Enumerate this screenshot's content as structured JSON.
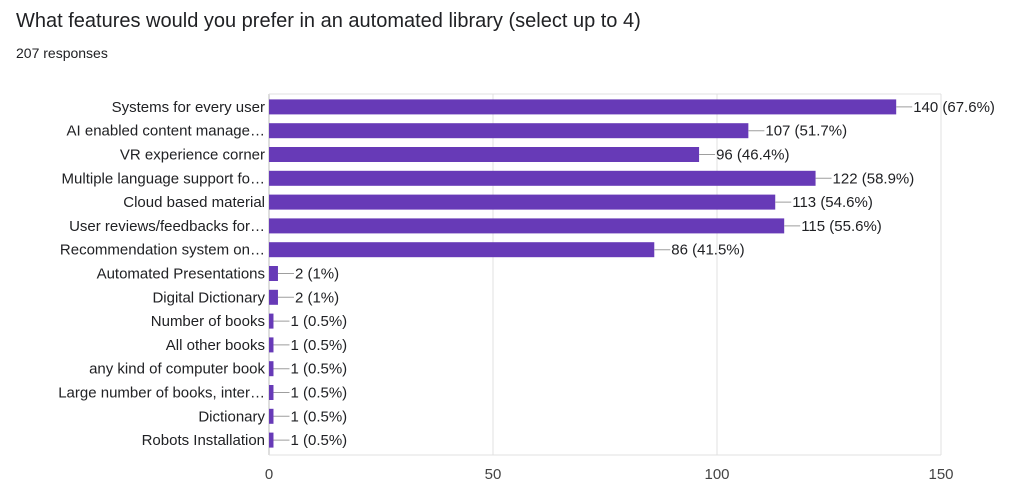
{
  "title": "What features would you prefer in an automated library (select up to 4)",
  "subtitle": "207 responses",
  "colors": {
    "bar": "#673ab7",
    "grid": "#e0e0e0",
    "axis": "#bdbdbd",
    "leader": "#9e9e9e"
  },
  "chart_data": {
    "type": "bar",
    "orientation": "horizontal",
    "categories": [
      "Systems for every user",
      "AI enabled content manage…",
      "VR experience corner",
      "Multiple language support fo…",
      "Cloud based material",
      "User reviews/feedbacks for…",
      "Recommendation system on…",
      "Automated Presentations",
      "Digital Dictionary",
      "Number of books",
      "All other books",
      "any kind of computer book",
      "Large number of books, inter…",
      "Dictionary",
      "Robots Installation"
    ],
    "values": [
      140,
      107,
      96,
      122,
      113,
      115,
      86,
      2,
      2,
      1,
      1,
      1,
      1,
      1,
      1
    ],
    "data_labels": [
      "140 (67.6%)",
      "107 (51.7%)",
      "96 (46.4%)",
      "122 (58.9%)",
      "113 (54.6%)",
      "115 (55.6%)",
      "86 (41.5%)",
      "2 (1%)",
      "2 (1%)",
      "1 (0.5%)",
      "1 (0.5%)",
      "1 (0.5%)",
      "1 (0.5%)",
      "1 (0.5%)",
      "1 (0.5%)"
    ],
    "xlim": [
      0,
      150
    ],
    "xticks": [
      0,
      50,
      100,
      150
    ],
    "grid": true
  }
}
